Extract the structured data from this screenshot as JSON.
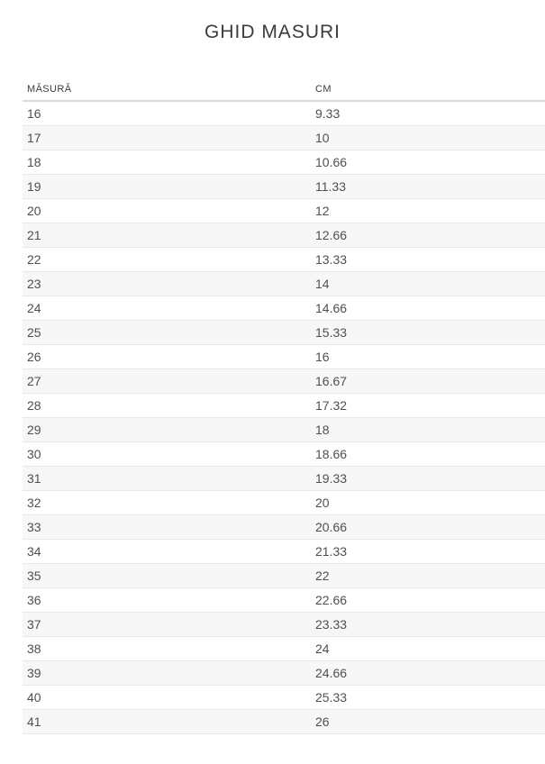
{
  "page": {
    "title": "GHID MASURI"
  },
  "table": {
    "columns": [
      {
        "key": "size",
        "label": "MĂSURĂ"
      },
      {
        "key": "cm",
        "label": "CM"
      }
    ],
    "rows": [
      [
        "16",
        "9.33"
      ],
      [
        "17",
        "10"
      ],
      [
        "18",
        "10.66"
      ],
      [
        "19",
        "11.33"
      ],
      [
        "20",
        "12"
      ],
      [
        "21",
        "12.66"
      ],
      [
        "22",
        "13.33"
      ],
      [
        "23",
        "14"
      ],
      [
        "24",
        "14.66"
      ],
      [
        "25",
        "15.33"
      ],
      [
        "26",
        "16"
      ],
      [
        "27",
        "16.67"
      ],
      [
        "28",
        "17.32"
      ],
      [
        "29",
        "18"
      ],
      [
        "30",
        "18.66"
      ],
      [
        "31",
        "19.33"
      ],
      [
        "32",
        "20"
      ],
      [
        "33",
        "20.66"
      ],
      [
        "34",
        "21.33"
      ],
      [
        "35",
        "22"
      ],
      [
        "36",
        "22.66"
      ],
      [
        "37",
        "23.33"
      ],
      [
        "38",
        "24"
      ],
      [
        "39",
        "24.66"
      ],
      [
        "40",
        "25.33"
      ],
      [
        "41",
        "26"
      ]
    ]
  },
  "colors": {
    "background": "#ffffff",
    "title_text": "#3b3b3b",
    "header_text": "#3d3d3d",
    "cell_text": "#4f4f4f",
    "stripe_row": "#f7f7f7",
    "row_border": "#e7e7e7",
    "header_border": "#d9d9d9"
  }
}
